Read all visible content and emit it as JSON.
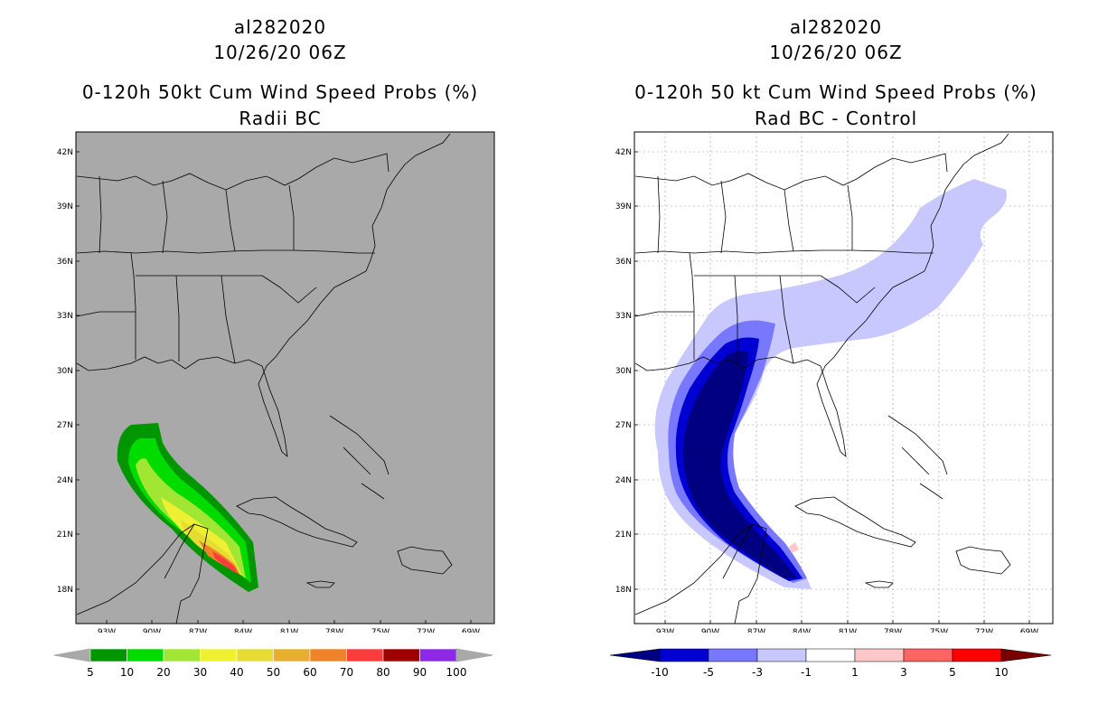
{
  "panels": [
    {
      "id": "left",
      "storm": "al282020",
      "datetime": "10/26/20 06Z",
      "title": "0-120h 50kt Cum Wind Speed Probs (%)",
      "subtitle": "Radii BC",
      "background": "#a9a9a9",
      "lat_labels": [
        "42N",
        "39N",
        "36N",
        "33N",
        "30N",
        "27N",
        "24N",
        "21N",
        "18N"
      ],
      "lon_labels": [
        "93W",
        "90W",
        "87W",
        "84W",
        "81W",
        "78W",
        "75W",
        "72W",
        "69W"
      ],
      "colorbar": {
        "labels": [
          "5",
          "10",
          "20",
          "30",
          "40",
          "50",
          "60",
          "70",
          "80",
          "90",
          "100"
        ],
        "colors": [
          "#009600",
          "#00dc00",
          "#a0e632",
          "#f0f032",
          "#e6dc32",
          "#e6af2d",
          "#f08228",
          "#fa3c3c",
          "#a00000",
          "#8c28e6"
        ]
      }
    },
    {
      "id": "right",
      "storm": "al282020",
      "datetime": "10/26/20 06Z",
      "title": "0-120h 50 kt Cum Wind Speed Probs (%)",
      "subtitle": "Rad BC - Control",
      "background": "#ffffff",
      "lat_labels": [
        "42N",
        "39N",
        "36N",
        "33N",
        "30N",
        "27N",
        "24N",
        "21N",
        "18N"
      ],
      "lon_labels": [
        "93W",
        "90W",
        "87W",
        "84W",
        "81W",
        "78W",
        "75W",
        "72W",
        "69W"
      ],
      "colorbar": {
        "labels": [
          "-10",
          "-5",
          "-3",
          "-1",
          "1",
          "3",
          "5",
          "10"
        ],
        "colors": [
          "#0000d2",
          "#7878ff",
          "#c8c8ff",
          "#ffffff",
          "#ffc8c8",
          "#ff6464",
          "#ff0000"
        ],
        "low_color": "#000080",
        "high_color": "#780000"
      }
    }
  ]
}
